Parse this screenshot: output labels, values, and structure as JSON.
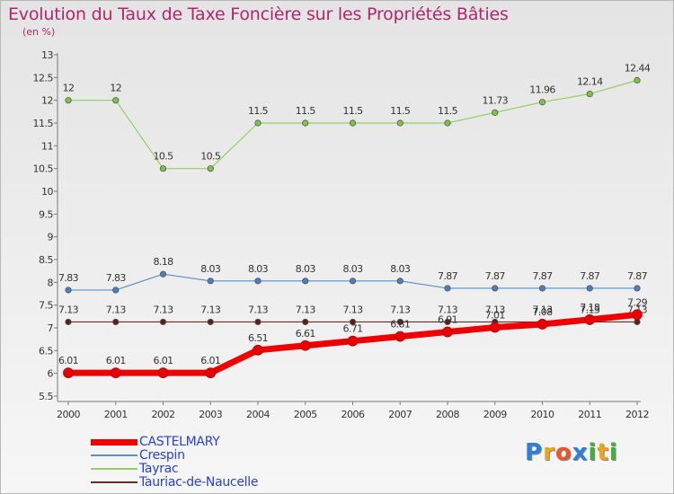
{
  "title": "Evolution du Taux de Taxe Foncière sur les Propriétés Bâties",
  "unit_label": "(en %)",
  "logo": {
    "text": "Proxiti",
    "letters": [
      "P",
      "r",
      "o",
      "x",
      "i",
      "t",
      "i"
    ],
    "colors": [
      "#2f7fd6",
      "#f0a21a",
      "#e8562a",
      "#2f7fd6",
      "#3fae3f",
      "#f0a21a",
      "#3fae3f"
    ]
  },
  "chart_data": {
    "type": "line",
    "title": "Evolution du Taux de Taxe Foncière sur les Propriétés Bâties",
    "ylabel": "(en %)",
    "xlabel": "",
    "x": [
      "2000",
      "2001",
      "2002",
      "2003",
      "2004",
      "2005",
      "2006",
      "2007",
      "2008",
      "2009",
      "2010",
      "2011",
      "2012"
    ],
    "ylim": [
      5.5,
      13
    ],
    "yticks": [
      "5.5",
      "6",
      "6.5",
      "7",
      "7.5",
      "8",
      "8.5",
      "9",
      "9.5",
      "10",
      "10.5",
      "11",
      "11.5",
      "12",
      "12.5",
      "13"
    ],
    "grid": false,
    "series": [
      {
        "name": "Crespin",
        "color": "#5b8ec4",
        "marker": "#4a80bf",
        "width": 1.2,
        "values": [
          7.83,
          7.83,
          8.18,
          8.03,
          8.03,
          8.03,
          8.03,
          8.03,
          7.87,
          7.87,
          7.87,
          7.87,
          7.87
        ],
        "labels": [
          "7.83",
          "7.83",
          "8.18",
          "8.03",
          "8.03",
          "8.03",
          "8.03",
          "8.03",
          "7.87",
          "7.87",
          "7.87",
          "7.87",
          "7.87"
        ]
      },
      {
        "name": "Tayrac",
        "color": "#93d05f",
        "marker": "#7ec445",
        "width": 1.2,
        "values": [
          12,
          12,
          10.5,
          10.5,
          11.5,
          11.5,
          11.5,
          11.5,
          11.5,
          11.73,
          11.96,
          12.14,
          12.44
        ],
        "labels": [
          "12",
          "12",
          "10.5",
          "10.5",
          "11.5",
          "11.5",
          "11.5",
          "11.5",
          "11.5",
          "11.73",
          "11.96",
          "12.14",
          "12.44"
        ]
      },
      {
        "name": "Tauriac-de-Naucelle",
        "color": "#6b2b2b",
        "marker": "#5a1f1f",
        "width": 1.2,
        "values": [
          7.13,
          7.13,
          7.13,
          7.13,
          7.13,
          7.13,
          7.13,
          7.13,
          7.13,
          7.13,
          7.13,
          7.13,
          7.13
        ],
        "labels": [
          "7.13",
          "7.13",
          "7.13",
          "7.13",
          "7.13",
          "7.13",
          "7.13",
          "7.13",
          "7.13",
          "7.13",
          "7.13",
          "7.13",
          "7.13"
        ]
      },
      {
        "name": "CASTELMARY",
        "color": "#ee0000",
        "marker": "#e60000",
        "width": 7,
        "values": [
          6.01,
          6.01,
          6.01,
          6.01,
          6.51,
          6.61,
          6.71,
          6.81,
          6.91,
          7.01,
          7.08,
          7.18,
          7.29
        ],
        "labels": [
          "6.01",
          "6.01",
          "6.01",
          "6.01",
          "6.51",
          "6.61",
          "6.71",
          "6.81",
          "6.91",
          "7.01",
          "7.08",
          "7.18",
          "7.29"
        ]
      }
    ],
    "legend": [
      {
        "name": "CASTELMARY",
        "color": "#ee0000",
        "thickness": 7
      },
      {
        "name": "Crespin",
        "color": "#5b8ec4",
        "thickness": 2
      },
      {
        "name": "Tayrac",
        "color": "#93d05f",
        "thickness": 2
      },
      {
        "name": "Tauriac-de-Naucelle",
        "color": "#6b2b2b",
        "thickness": 2
      }
    ]
  }
}
